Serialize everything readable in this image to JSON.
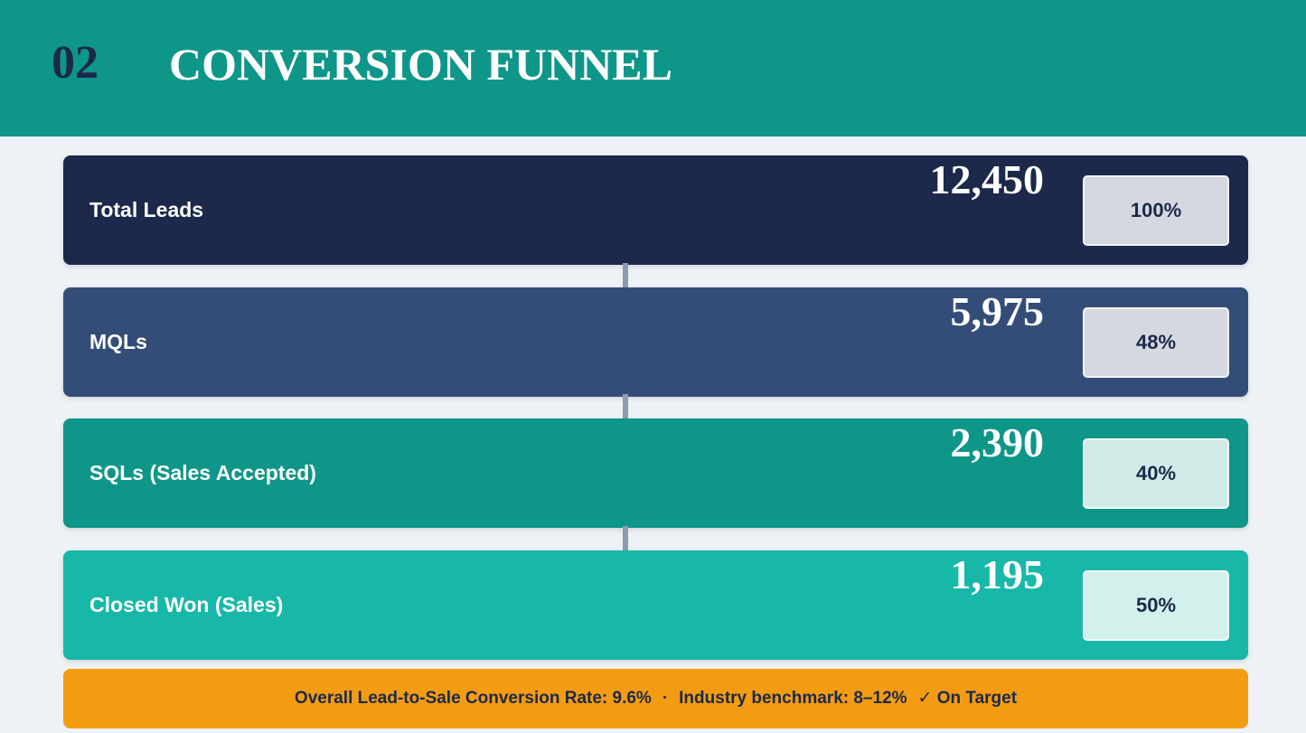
{
  "header": {
    "number": "02",
    "title": "CONVERSION FUNNEL"
  },
  "stages": [
    {
      "label": "Total Leads",
      "count": "12,450",
      "rate": "100%"
    },
    {
      "label": "MQLs",
      "count": "5,975",
      "rate": "48%"
    },
    {
      "label": "SQLs (Sales Accepted)",
      "count": "2,390",
      "rate": "40%"
    },
    {
      "label": "Closed Won (Sales)",
      "count": "1,195",
      "rate": "50%"
    }
  ],
  "footer": [
    "Overall Lead-to-Sale Conversion Rate: 9.6%",
    "·",
    "Industry benchmark: 8–12%",
    "✓ On Target"
  ]
}
